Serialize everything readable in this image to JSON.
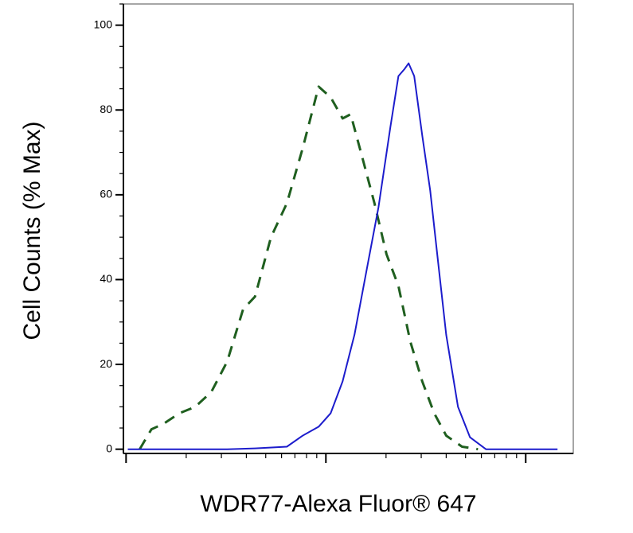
{
  "chart_data": {
    "type": "line",
    "x_label": "WDR77-Alexa Fluor® 647",
    "y_label": "Cell Counts (% Max)",
    "xscale": "log",
    "xlim": [
      97,
      17300
    ],
    "xticks": [
      100,
      1000,
      10000
    ],
    "ylim": [
      -1,
      105
    ],
    "yticks": [
      0,
      20,
      40,
      60,
      80,
      100
    ],
    "series": [
      {
        "color": "#1f5f1f",
        "dash": true,
        "x": [
          117,
          134,
          154,
          185,
          222,
          267,
          321,
          385,
          442,
          531,
          638,
          766,
          920,
          1057,
          1213,
          1330,
          1525,
          1750,
          2010,
          2307,
          2645,
          3034,
          3484,
          4000,
          4800,
          5768
        ],
        "values": [
          0,
          4.7,
          6,
          8.5,
          10,
          13.5,
          20.7,
          33,
          36,
          50,
          58,
          71,
          85.5,
          83,
          78,
          79,
          68.6,
          58,
          46,
          38.5,
          25.4,
          16,
          8.5,
          3.2,
          0.6,
          0
        ]
      },
      {
        "color": "#1c1ccc",
        "dash": false,
        "x": [
          102,
          321,
          442,
          638,
          766,
          920,
          1057,
          1213,
          1390,
          1596,
          1832,
          2103,
          2307,
          2477,
          2594,
          2767,
          3034,
          3326,
          3648,
          4000,
          4581,
          5261,
          6324,
          14420
        ],
        "values": [
          0,
          0,
          0.2,
          0.6,
          3.2,
          5.3,
          8.5,
          16,
          27,
          42,
          57,
          76,
          88,
          89.7,
          91,
          88,
          74,
          61,
          44,
          27,
          10,
          2.8,
          0,
          0
        ]
      }
    ]
  }
}
